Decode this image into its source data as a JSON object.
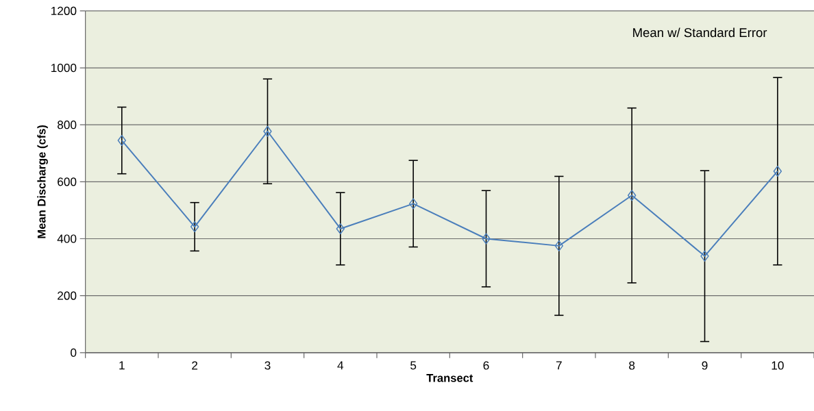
{
  "chart_data": {
    "type": "line",
    "xlabel": "Transect",
    "ylabel": "Mean Discharge (cfs)",
    "annotations": [
      "Mean w/ Standard Error"
    ],
    "categories": [
      "1",
      "2",
      "3",
      "4",
      "5",
      "6",
      "7",
      "8",
      "9",
      "10"
    ],
    "series": [
      {
        "color": "#4a7ebb",
        "values": [
          745,
          442,
          777,
          435,
          523,
          400,
          375,
          552,
          339,
          637
        ],
        "errors": [
          117,
          85,
          184,
          127,
          152,
          169,
          244,
          307,
          300,
          329
        ]
      }
    ],
    "ylim": [
      0,
      1200
    ],
    "yticks": [
      0,
      200,
      400,
      600,
      800,
      1000,
      1200
    ],
    "grid": "y",
    "marker": "diamond",
    "line_style": "solid"
  }
}
